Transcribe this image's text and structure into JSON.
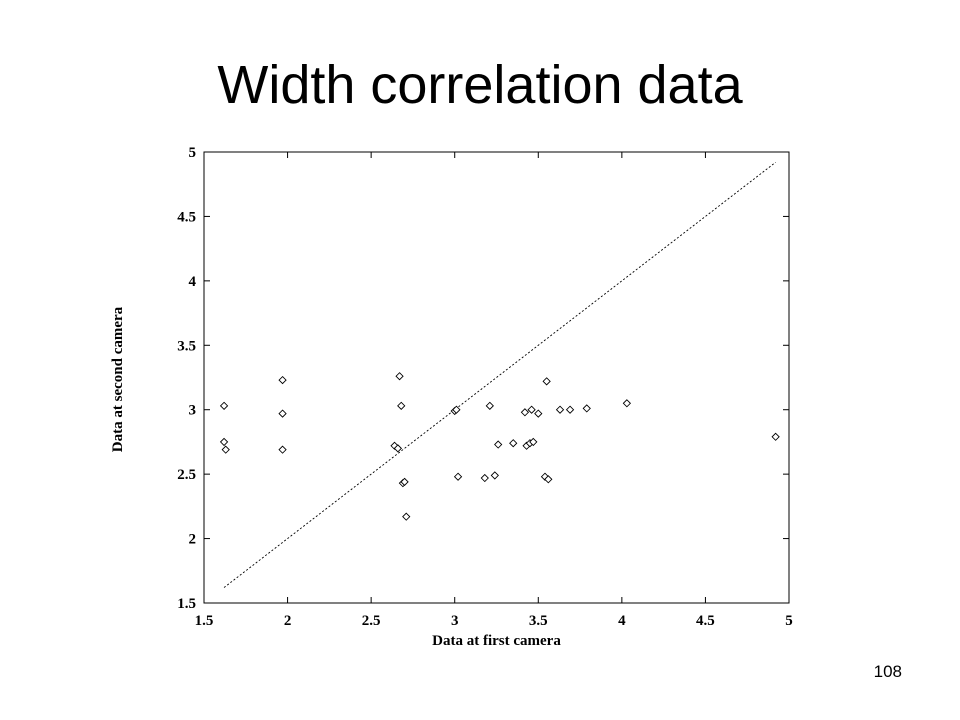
{
  "slide": {
    "title": "Width correlation data",
    "page_number": "108"
  },
  "chart_data": {
    "type": "scatter",
    "title": "",
    "xlabel": "Data at first camera",
    "ylabel": "Data at second camera",
    "xlim": [
      1.5,
      5
    ],
    "ylim": [
      1.5,
      5
    ],
    "xticks": [
      "1.5",
      "2",
      "2.5",
      "3",
      "3.5",
      "4",
      "4.5",
      "5"
    ],
    "yticks": [
      "1.5",
      "2",
      "2.5",
      "3",
      "3.5",
      "4",
      "4.5",
      "5"
    ],
    "grid": false,
    "legend": "none",
    "series": [
      {
        "marker": "diamond",
        "points": [
          [
            1.62,
            3.03
          ],
          [
            1.62,
            2.75
          ],
          [
            1.63,
            2.69
          ],
          [
            1.97,
            3.23
          ],
          [
            1.97,
            2.97
          ],
          [
            1.97,
            2.69
          ],
          [
            2.64,
            2.72
          ],
          [
            2.66,
            2.7
          ],
          [
            2.67,
            3.26
          ],
          [
            2.68,
            3.03
          ],
          [
            2.69,
            2.43
          ],
          [
            2.7,
            2.44
          ],
          [
            2.71,
            2.17
          ],
          [
            3.0,
            2.99
          ],
          [
            3.01,
            3.0
          ],
          [
            3.02,
            2.48
          ],
          [
            3.18,
            2.47
          ],
          [
            3.21,
            3.03
          ],
          [
            3.24,
            2.49
          ],
          [
            3.26,
            2.73
          ],
          [
            3.35,
            2.74
          ],
          [
            3.42,
            2.98
          ],
          [
            3.43,
            2.72
          ],
          [
            3.45,
            2.74
          ],
          [
            3.46,
            3.0
          ],
          [
            3.47,
            2.75
          ],
          [
            3.5,
            2.97
          ],
          [
            3.54,
            2.48
          ],
          [
            3.55,
            3.22
          ],
          [
            3.56,
            2.46
          ],
          [
            3.63,
            3.0
          ],
          [
            3.69,
            3.0
          ],
          [
            3.79,
            3.01
          ],
          [
            4.03,
            3.05
          ],
          [
            4.92,
            2.79
          ]
        ]
      },
      {
        "style": "dashed-line",
        "points": [
          [
            1.62,
            1.62
          ],
          [
            4.92,
            4.92
          ]
        ]
      }
    ]
  }
}
